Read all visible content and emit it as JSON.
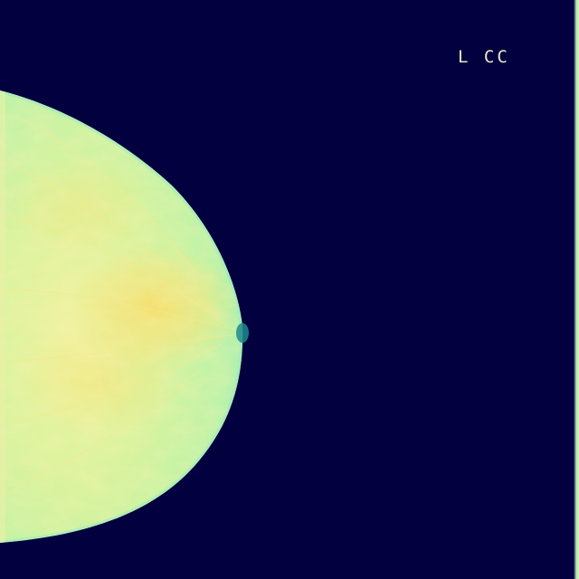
{
  "image": {
    "view_label": "L CC",
    "colors": {
      "background": "#02003f",
      "tissue_base": "#b9f2a9",
      "tissue_dense": "#f4e77a",
      "tissue_edge": "#8ee3b6",
      "nipple": "#1f8a8c",
      "label_text": "#e8e9c6"
    }
  }
}
